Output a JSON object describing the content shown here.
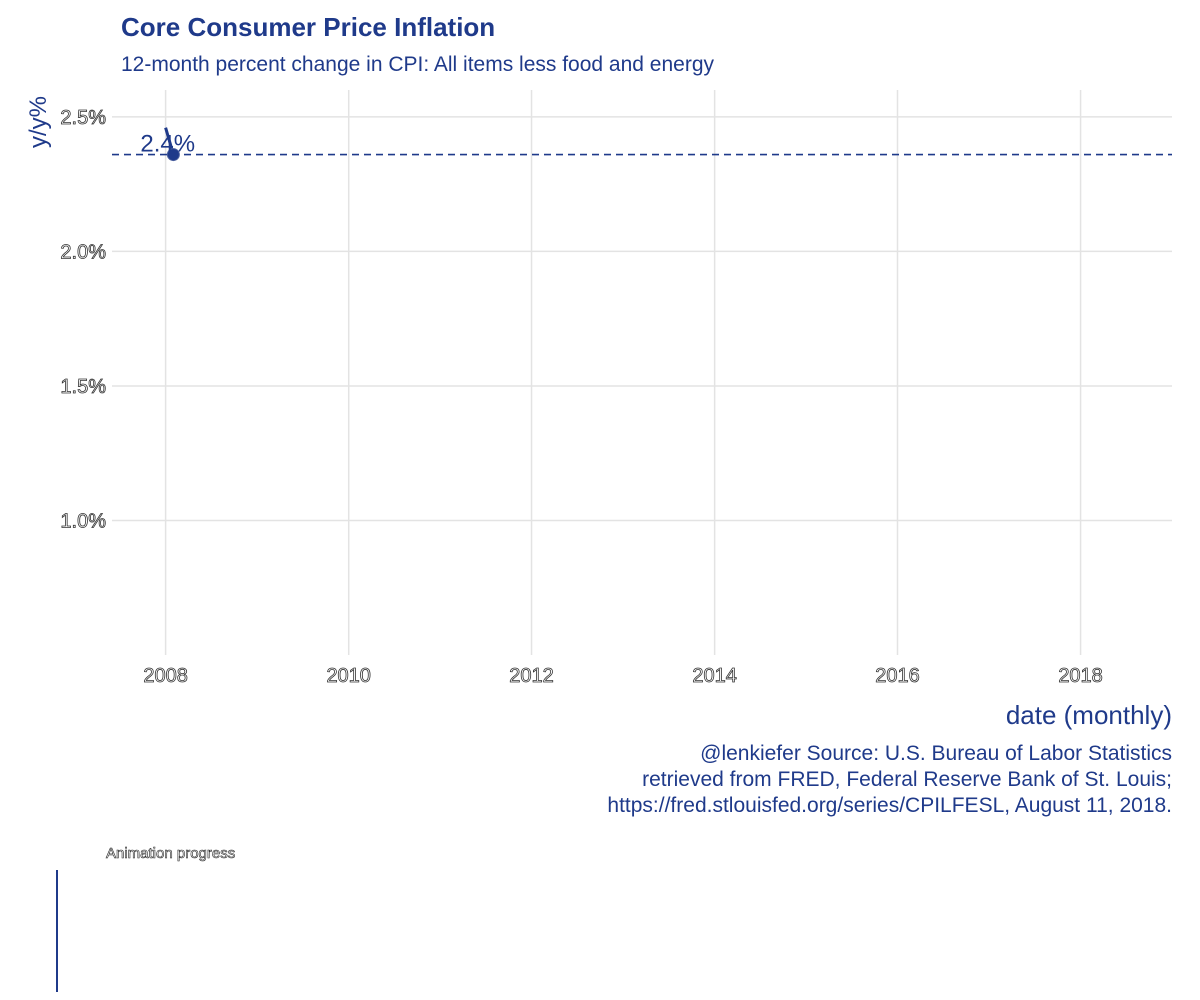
{
  "chart_data": {
    "type": "line",
    "title": "Core Consumer Price Inflation",
    "subtitle": "12-month percent change in CPI: All items less food and energy",
    "xlabel": "date (monthly)",
    "ylabel": "y/y%",
    "x_ticks": [
      "2008",
      "2010",
      "2012",
      "2014",
      "2016",
      "2018"
    ],
    "y_ticks": [
      "1.0%",
      "1.5%",
      "2.0%",
      "2.5%"
    ],
    "x_range": [
      "2007-06-01",
      "2019-01-01"
    ],
    "y_range": [
      0.5,
      2.6
    ],
    "grid": true,
    "series": [
      {
        "x": [
          "2008-01-01",
          "2008-02-01"
        ],
        "values": [
          2.46,
          2.36
        ]
      }
    ],
    "current_point": {
      "x": "2008-02-01",
      "value": 2.36
    },
    "reference_line": {
      "value": 2.36,
      "style": "dashed"
    },
    "point_label": "2.4%",
    "caption": [
      "@lenkiefer Source: U.S. Bureau of Labor Statistics",
      "retrieved from FRED, Federal Reserve Bank of St. Louis;",
      "https://fred.stlouisfed.org/series/CPILFESL, August 11, 2018."
    ],
    "colors": {
      "accent": "#1f3a8a",
      "grid": "#e3e3e3"
    }
  },
  "progress": {
    "label": "Animation progress",
    "fraction": 0.0
  }
}
